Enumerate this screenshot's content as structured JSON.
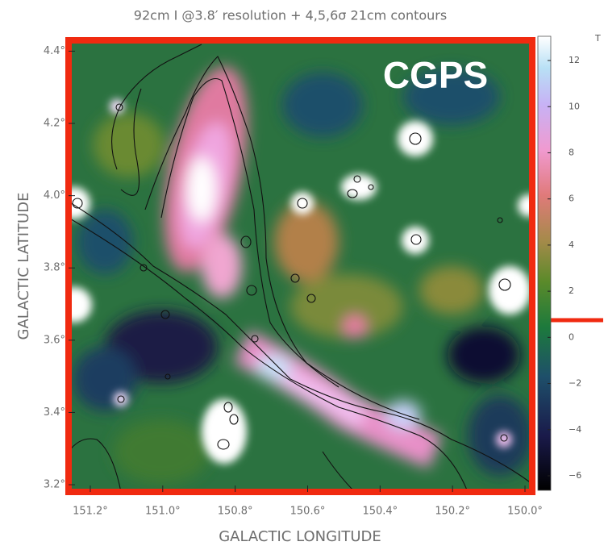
{
  "chart_data": {
    "type": "image",
    "title": "92cm I @3.8′ resolution + 4,5,6σ 21cm contours",
    "annotation": "CGPS",
    "x_label": "GALACTIC LONGITUDE",
    "y_label": "GALACTIC LATITUDE",
    "xlim": [
      151.26,
      149.98
    ],
    "xticks": [
      {
        "value": 151.2,
        "label": "151.2°"
      },
      {
        "value": 151.0,
        "label": "151.0°"
      },
      {
        "value": 150.8,
        "label": "150.8°"
      },
      {
        "value": 150.6,
        "label": "150.6°"
      },
      {
        "value": 150.4,
        "label": "150.4°"
      },
      {
        "value": 150.2,
        "label": "150.2°"
      },
      {
        "value": 150.0,
        "label": "150.0°"
      }
    ],
    "ylim": [
      3.18,
      4.43
    ],
    "yticks": [
      {
        "value": 3.2,
        "label": "3.2°"
      },
      {
        "value": 3.4,
        "label": "3.4°"
      },
      {
        "value": 3.6,
        "label": "3.6°"
      },
      {
        "value": 3.8,
        "label": "3.8°"
      },
      {
        "value": 4.0,
        "label": "4.0°"
      },
      {
        "value": 4.2,
        "label": "4.2°"
      },
      {
        "value": 4.4,
        "label": "4.4°"
      }
    ],
    "colorbar_label": "T",
    "clim": [
      -6.63,
      13.05
    ],
    "cticks": [
      {
        "value": -6,
        "label": "−6"
      },
      {
        "value": -4,
        "label": "−4"
      },
      {
        "value": -2,
        "label": "−2"
      },
      0,
      2,
      4,
      6,
      8,
      10,
      12
    ]
  }
}
